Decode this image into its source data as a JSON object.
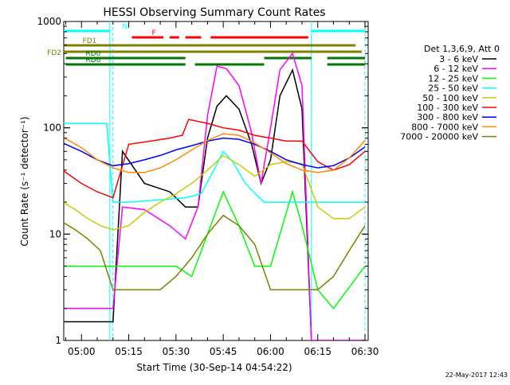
{
  "chart_data": {
    "type": "line",
    "title": "HESSI Observing Summary Count Rates",
    "xlabel": "Start Time (30-Sep-14 04:54:22)",
    "ylabel": "Count Rate (s⁻¹ detector⁻¹)",
    "y_scale": "log",
    "ylim": [
      1,
      1000
    ],
    "xlim": [
      "04:54:22",
      "06:31:00"
    ],
    "x_ticks": [
      "05:00",
      "05:15",
      "05:30",
      "05:45",
      "06:00",
      "06:15",
      "06:30"
    ],
    "y_ticks": [
      "1",
      "10",
      "100",
      "1000"
    ],
    "legend_header": "Det 1,3,6,9, Att 0",
    "legend_position": "right",
    "series": [
      {
        "name": "3 - 6 keV",
        "color": "#000000",
        "x": [
          "04:54",
          "05:05",
          "05:10",
          "05:13",
          "05:20",
          "05:28",
          "05:33",
          "05:37",
          "05:40",
          "05:43",
          "05:46",
          "05:50",
          "05:54",
          "05:57",
          "06:00",
          "06:03",
          "06:07",
          "06:10",
          "06:13",
          "06:30"
        ],
        "y": [
          1.5,
          1.5,
          1.5,
          60,
          30,
          25,
          18,
          18,
          80,
          160,
          200,
          150,
          70,
          30,
          50,
          200,
          350,
          150,
          1,
          1
        ]
      },
      {
        "name": "6 - 12 keV",
        "color": "#ff00ff",
        "x": [
          "04:54",
          "05:05",
          "05:10",
          "05:13",
          "05:20",
          "05:28",
          "05:33",
          "05:37",
          "05:40",
          "05:43",
          "05:46",
          "05:50",
          "05:54",
          "05:57",
          "06:00",
          "06:03",
          "06:07",
          "06:10",
          "06:13",
          "06:30"
        ],
        "y": [
          2,
          2,
          2,
          18,
          17,
          12,
          9,
          18,
          130,
          380,
          360,
          250,
          90,
          30,
          100,
          350,
          500,
          250,
          1,
          1
        ]
      },
      {
        "name": "12 - 25 keV",
        "color": "#00ff00",
        "x": [
          "04:54",
          "05:05",
          "05:10",
          "05:13",
          "05:20",
          "05:30",
          "05:35",
          "05:40",
          "05:45",
          "05:50",
          "05:55",
          "06:00",
          "06:03",
          "06:07",
          "06:10",
          "06:15",
          "06:20",
          "06:30"
        ],
        "y": [
          5,
          5,
          5,
          5,
          5,
          5,
          4,
          10,
          25,
          12,
          5,
          5,
          10,
          25,
          12,
          3,
          2,
          5
        ]
      },
      {
        "name": "25 - 50 keV",
        "color": "#00ffff",
        "x": [
          "04:54",
          "05:08",
          "05:10",
          "05:15",
          "05:25",
          "05:33",
          "05:38",
          "05:42",
          "05:45",
          "05:48",
          "05:52",
          "05:58",
          "06:05",
          "06:10",
          "06:13",
          "06:20",
          "06:30"
        ],
        "y": [
          110,
          110,
          20,
          20,
          21,
          22,
          24,
          40,
          60,
          48,
          30,
          20,
          20,
          20,
          20,
          20,
          20
        ]
      },
      {
        "name": "50 - 100 keV",
        "color": "#cccc00",
        "x": [
          "04:54",
          "04:58",
          "05:02",
          "05:06",
          "05:10",
          "05:15",
          "05:20",
          "05:25",
          "05:30",
          "05:35",
          "05:40",
          "05:45",
          "05:50",
          "05:55",
          "06:00",
          "06:05",
          "06:10",
          "06:15",
          "06:20",
          "06:25",
          "06:30"
        ],
        "y": [
          20,
          17,
          14,
          12,
          11,
          12,
          16,
          20,
          24,
          30,
          40,
          55,
          45,
          35,
          45,
          48,
          46,
          18,
          14,
          14,
          18
        ]
      },
      {
        "name": "100 - 300 keV",
        "color": "#ff0000",
        "x": [
          "04:54",
          "05:00",
          "05:05",
          "05:10",
          "05:15",
          "05:22",
          "05:28",
          "05:32",
          "05:34",
          "05:40",
          "05:45",
          "05:50",
          "05:55",
          "06:00",
          "06:05",
          "06:10",
          "06:15",
          "06:20",
          "06:25",
          "06:30"
        ],
        "y": [
          40,
          30,
          25,
          22,
          70,
          75,
          80,
          85,
          120,
          110,
          100,
          95,
          85,
          80,
          75,
          75,
          48,
          40,
          45,
          60
        ]
      },
      {
        "name": "300 - 800 keV",
        "color": "#0000ff",
        "x": [
          "04:54",
          "05:00",
          "05:05",
          "05:10",
          "05:15",
          "05:20",
          "05:25",
          "05:30",
          "05:35",
          "05:40",
          "05:45",
          "05:50",
          "05:55",
          "06:00",
          "06:05",
          "06:10",
          "06:15",
          "06:20",
          "06:25",
          "06:30"
        ],
        "y": [
          72,
          60,
          50,
          44,
          46,
          50,
          55,
          62,
          68,
          75,
          80,
          78,
          70,
          60,
          50,
          45,
          42,
          44,
          52,
          66
        ]
      },
      {
        "name": "800 - 7000 keV",
        "color": "#ff8800",
        "x": [
          "04:54",
          "05:00",
          "05:05",
          "05:10",
          "05:15",
          "05:20",
          "05:25",
          "05:30",
          "05:35",
          "05:40",
          "05:45",
          "05:50",
          "05:55",
          "06:00",
          "06:05",
          "06:10",
          "06:15",
          "06:20",
          "06:25",
          "06:30"
        ],
        "y": [
          82,
          65,
          50,
          42,
          38,
          38,
          42,
          50,
          62,
          76,
          88,
          85,
          72,
          58,
          46,
          40,
          38,
          40,
          52,
          76
        ]
      },
      {
        "name": "7000 - 20000 keV",
        "color": "#808000",
        "x": [
          "04:54",
          "04:58",
          "05:02",
          "05:06",
          "05:10",
          "05:15",
          "05:20",
          "05:25",
          "05:30",
          "05:35",
          "05:40",
          "05:45",
          "05:50",
          "05:55",
          "06:00",
          "06:05",
          "06:10",
          "06:15",
          "06:20",
          "06:25",
          "06:30"
        ],
        "y": [
          13,
          11,
          9,
          7,
          3,
          3,
          3,
          3,
          4,
          6,
          10,
          15,
          12,
          8,
          3,
          3,
          3,
          3,
          4,
          7,
          12
        ]
      }
    ],
    "flag_bars": [
      {
        "label": "N",
        "color": "#00ffff",
        "segments": [
          [
            "04:54",
            "05:09"
          ],
          [
            "06:13",
            "06:30"
          ]
        ]
      },
      {
        "label": "F",
        "color": "#ff0000",
        "segments": [
          [
            "05:16",
            "05:26"
          ],
          [
            "05:28",
            "05:31"
          ],
          [
            "05:33",
            "05:38"
          ],
          [
            "05:41",
            "06:12"
          ]
        ]
      },
      {
        "label": "FD1",
        "color": "#808000",
        "segments": [
          [
            "04:54",
            "06:27"
          ]
        ]
      },
      {
        "label": "FD2",
        "color": "#808000",
        "segments": [
          [
            "04:54",
            "06:29"
          ]
        ]
      },
      {
        "label": "RD0",
        "color": "#007700",
        "segments": [
          [
            "04:55",
            "05:33"
          ],
          [
            "05:58",
            "06:13"
          ],
          [
            "06:18",
            "06:30"
          ]
        ]
      },
      {
        "label": "RD6",
        "color": "#007700",
        "segments": [
          [
            "04:55",
            "05:33"
          ],
          [
            "05:36",
            "05:58"
          ],
          [
            "06:18",
            "06:30"
          ]
        ]
      }
    ],
    "vertical_markers": {
      "solid": [
        "05:09",
        "06:13"
      ],
      "dashed": [
        "05:10",
        "06:30"
      ]
    }
  },
  "footer": {
    "timestamp": "22-May-2017 12:43"
  }
}
